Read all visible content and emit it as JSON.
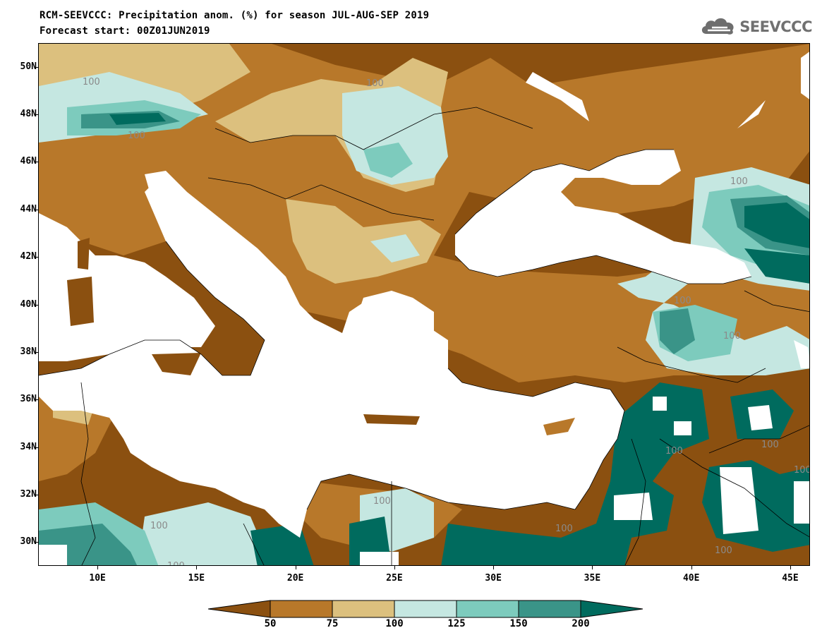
{
  "header": {
    "title_line1": "RCM-SEEVCCC: Precipitation anom. (%) for season JUL-AUG-SEP 2019",
    "title_line2": "Forecast start: 00Z01JUN2019"
  },
  "logo": {
    "text": "SEEVCCC",
    "icon": "cloud-logo-icon"
  },
  "map": {
    "lon_range": [
      7,
      46
    ],
    "lat_range": [
      29,
      51
    ],
    "lat_labels": [
      "50N",
      "48N",
      "46N",
      "44N",
      "42N",
      "40N",
      "38N",
      "36N",
      "34N",
      "32N",
      "30N"
    ],
    "lon_labels": [
      "10E",
      "15E",
      "20E",
      "25E",
      "30E",
      "35E",
      "40E",
      "45E"
    ],
    "contour_label": "100",
    "colors": {
      "below_50": "#8B5010",
      "50_75": "#B8782A",
      "75_100": "#DCC07E",
      "100_125": "#C5E7E1",
      "125_150": "#7DCBBD",
      "150_200": "#3A9488",
      "above_200": "#006B5E",
      "sea": "#FFFFFF",
      "contour_line": "#9AA6A6"
    }
  },
  "colorbar": {
    "labels": [
      "50",
      "75",
      "100",
      "125",
      "150",
      "200"
    ],
    "colors": [
      "#8B5010",
      "#B8782A",
      "#DCC07E",
      "#C5E7E1",
      "#7DCBBD",
      "#3A9488",
      "#006B5E"
    ]
  }
}
